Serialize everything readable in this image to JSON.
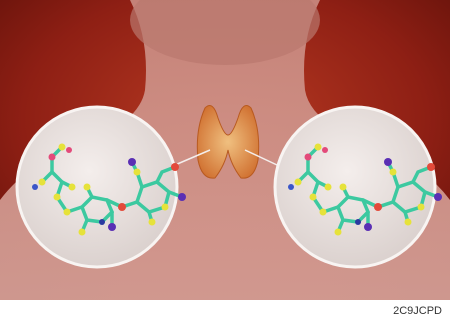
{
  "watermark": {
    "image_id": "2C9JCPD"
  }
}
